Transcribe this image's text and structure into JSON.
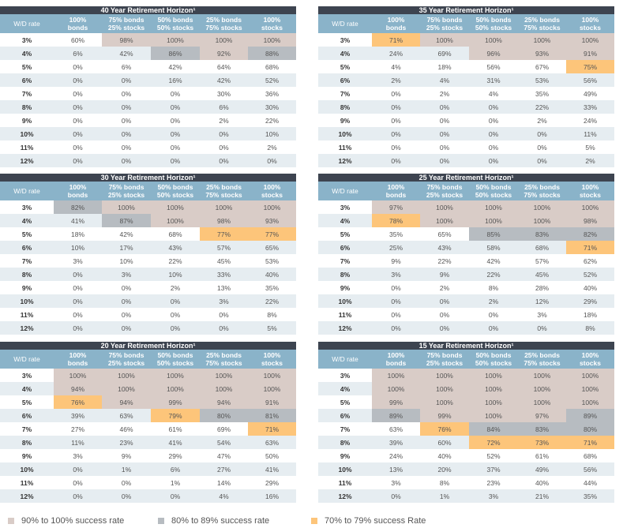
{
  "header": {
    "wd_label": "W/D rate",
    "cols": [
      [
        "100%",
        "bonds"
      ],
      [
        "75% bonds",
        "25% stocks"
      ],
      [
        "50% bonds",
        "50% stocks"
      ],
      [
        "25% bonds",
        "75% stocks"
      ],
      [
        "100%",
        "stocks"
      ]
    ]
  },
  "rates": [
    "3%",
    "4%",
    "5%",
    "6%",
    "7%",
    "8%",
    "9%",
    "10%",
    "11%",
    "12%"
  ],
  "tables": [
    {
      "title": "40 Year Retirement Horizon¹",
      "rows": [
        [
          {
            "v": "60%"
          },
          {
            "v": "98%",
            "c": "c90"
          },
          {
            "v": "100%",
            "c": "c90"
          },
          {
            "v": "100%",
            "c": "c90"
          },
          {
            "v": "100%",
            "c": "c90"
          }
        ],
        [
          {
            "v": "6%"
          },
          {
            "v": "42%"
          },
          {
            "v": "86%",
            "c": "c80"
          },
          {
            "v": "92%",
            "c": "c90"
          },
          {
            "v": "88%",
            "c": "c80"
          }
        ],
        [
          {
            "v": "0%"
          },
          {
            "v": "6%"
          },
          {
            "v": "42%"
          },
          {
            "v": "64%"
          },
          {
            "v": "68%"
          }
        ],
        [
          {
            "v": "0%"
          },
          {
            "v": "0%"
          },
          {
            "v": "16%"
          },
          {
            "v": "42%"
          },
          {
            "v": "52%"
          }
        ],
        [
          {
            "v": "0%"
          },
          {
            "v": "0%"
          },
          {
            "v": "0%"
          },
          {
            "v": "30%"
          },
          {
            "v": "36%"
          }
        ],
        [
          {
            "v": "0%"
          },
          {
            "v": "0%"
          },
          {
            "v": "0%"
          },
          {
            "v": "6%"
          },
          {
            "v": "30%"
          }
        ],
        [
          {
            "v": "0%"
          },
          {
            "v": "0%"
          },
          {
            "v": "0%"
          },
          {
            "v": "2%"
          },
          {
            "v": "22%"
          }
        ],
        [
          {
            "v": "0%"
          },
          {
            "v": "0%"
          },
          {
            "v": "0%"
          },
          {
            "v": "0%"
          },
          {
            "v": "10%"
          }
        ],
        [
          {
            "v": "0%"
          },
          {
            "v": "0%"
          },
          {
            "v": "0%"
          },
          {
            "v": "0%"
          },
          {
            "v": "2%"
          }
        ],
        [
          {
            "v": "0%"
          },
          {
            "v": "0%"
          },
          {
            "v": "0%"
          },
          {
            "v": "0%"
          },
          {
            "v": "0%"
          }
        ]
      ]
    },
    {
      "title": "35 Year Retirement Horizon¹",
      "rows": [
        [
          {
            "v": "71%",
            "c": "c70"
          },
          {
            "v": "100%",
            "c": "c90"
          },
          {
            "v": "100%",
            "c": "c90"
          },
          {
            "v": "100%",
            "c": "c90"
          },
          {
            "v": "100%",
            "c": "c90"
          }
        ],
        [
          {
            "v": "24%"
          },
          {
            "v": "69%"
          },
          {
            "v": "96%",
            "c": "c90"
          },
          {
            "v": "93%",
            "c": "c90"
          },
          {
            "v": "91%",
            "c": "c90"
          }
        ],
        [
          {
            "v": "4%"
          },
          {
            "v": "18%"
          },
          {
            "v": "56%"
          },
          {
            "v": "67%"
          },
          {
            "v": "75%",
            "c": "c70"
          }
        ],
        [
          {
            "v": "2%"
          },
          {
            "v": "4%"
          },
          {
            "v": "31%"
          },
          {
            "v": "53%"
          },
          {
            "v": "56%"
          }
        ],
        [
          {
            "v": "0%"
          },
          {
            "v": "2%"
          },
          {
            "v": "4%"
          },
          {
            "v": "35%"
          },
          {
            "v": "49%"
          }
        ],
        [
          {
            "v": "0%"
          },
          {
            "v": "0%"
          },
          {
            "v": "0%"
          },
          {
            "v": "22%"
          },
          {
            "v": "33%"
          }
        ],
        [
          {
            "v": "0%"
          },
          {
            "v": "0%"
          },
          {
            "v": "0%"
          },
          {
            "v": "2%"
          },
          {
            "v": "24%"
          }
        ],
        [
          {
            "v": "0%"
          },
          {
            "v": "0%"
          },
          {
            "v": "0%"
          },
          {
            "v": "0%"
          },
          {
            "v": "11%"
          }
        ],
        [
          {
            "v": "0%"
          },
          {
            "v": "0%"
          },
          {
            "v": "0%"
          },
          {
            "v": "0%"
          },
          {
            "v": "5%"
          }
        ],
        [
          {
            "v": "0%"
          },
          {
            "v": "0%"
          },
          {
            "v": "0%"
          },
          {
            "v": "0%"
          },
          {
            "v": "2%"
          }
        ]
      ]
    },
    {
      "title": "30 Year Retirement Horizon¹",
      "rows": [
        [
          {
            "v": "82%",
            "c": "c80"
          },
          {
            "v": "100%",
            "c": "c90"
          },
          {
            "v": "100%",
            "c": "c90"
          },
          {
            "v": "100%",
            "c": "c90"
          },
          {
            "v": "100%",
            "c": "c90"
          }
        ],
        [
          {
            "v": "41%"
          },
          {
            "v": "87%",
            "c": "c80"
          },
          {
            "v": "100%",
            "c": "c90"
          },
          {
            "v": "98%",
            "c": "c90"
          },
          {
            "v": "93%",
            "c": "c90"
          }
        ],
        [
          {
            "v": "18%"
          },
          {
            "v": "42%"
          },
          {
            "v": "68%"
          },
          {
            "v": "77%",
            "c": "c70"
          },
          {
            "v": "77%",
            "c": "c70"
          }
        ],
        [
          {
            "v": "10%"
          },
          {
            "v": "17%"
          },
          {
            "v": "43%"
          },
          {
            "v": "57%"
          },
          {
            "v": "65%"
          }
        ],
        [
          {
            "v": "3%"
          },
          {
            "v": "10%"
          },
          {
            "v": "22%"
          },
          {
            "v": "45%"
          },
          {
            "v": "53%"
          }
        ],
        [
          {
            "v": "0%"
          },
          {
            "v": "3%"
          },
          {
            "v": "10%"
          },
          {
            "v": "33%"
          },
          {
            "v": "40%"
          }
        ],
        [
          {
            "v": "0%"
          },
          {
            "v": "0%"
          },
          {
            "v": "2%"
          },
          {
            "v": "13%"
          },
          {
            "v": "35%"
          }
        ],
        [
          {
            "v": "0%"
          },
          {
            "v": "0%"
          },
          {
            "v": "0%"
          },
          {
            "v": "3%"
          },
          {
            "v": "22%"
          }
        ],
        [
          {
            "v": "0%"
          },
          {
            "v": "0%"
          },
          {
            "v": "0%"
          },
          {
            "v": "0%"
          },
          {
            "v": "8%"
          }
        ],
        [
          {
            "v": "0%"
          },
          {
            "v": "0%"
          },
          {
            "v": "0%"
          },
          {
            "v": "0%"
          },
          {
            "v": "5%"
          }
        ]
      ]
    },
    {
      "title": "25 Year Retirement Horizon¹",
      "rows": [
        [
          {
            "v": "97%",
            "c": "c90"
          },
          {
            "v": "100%",
            "c": "c90"
          },
          {
            "v": "100%",
            "c": "c90"
          },
          {
            "v": "100%",
            "c": "c90"
          },
          {
            "v": "100%",
            "c": "c90"
          }
        ],
        [
          {
            "v": "78%",
            "c": "c70"
          },
          {
            "v": "100%",
            "c": "c90"
          },
          {
            "v": "100%",
            "c": "c90"
          },
          {
            "v": "100%",
            "c": "c90"
          },
          {
            "v": "98%",
            "c": "c90"
          }
        ],
        [
          {
            "v": "35%"
          },
          {
            "v": "65%"
          },
          {
            "v": "85%",
            "c": "c80"
          },
          {
            "v": "83%",
            "c": "c80"
          },
          {
            "v": "82%",
            "c": "c80"
          }
        ],
        [
          {
            "v": "25%"
          },
          {
            "v": "43%"
          },
          {
            "v": "58%"
          },
          {
            "v": "68%"
          },
          {
            "v": "71%",
            "c": "c70"
          }
        ],
        [
          {
            "v": "9%"
          },
          {
            "v": "22%"
          },
          {
            "v": "42%"
          },
          {
            "v": "57%"
          },
          {
            "v": "62%"
          }
        ],
        [
          {
            "v": "3%"
          },
          {
            "v": "9%"
          },
          {
            "v": "22%"
          },
          {
            "v": "45%"
          },
          {
            "v": "52%"
          }
        ],
        [
          {
            "v": "0%"
          },
          {
            "v": "2%"
          },
          {
            "v": "8%"
          },
          {
            "v": "28%"
          },
          {
            "v": "40%"
          }
        ],
        [
          {
            "v": "0%"
          },
          {
            "v": "0%"
          },
          {
            "v": "2%"
          },
          {
            "v": "12%"
          },
          {
            "v": "29%"
          }
        ],
        [
          {
            "v": "0%"
          },
          {
            "v": "0%"
          },
          {
            "v": "0%"
          },
          {
            "v": "3%"
          },
          {
            "v": "18%"
          }
        ],
        [
          {
            "v": "0%"
          },
          {
            "v": "0%"
          },
          {
            "v": "0%"
          },
          {
            "v": "0%"
          },
          {
            "v": "8%"
          }
        ]
      ]
    },
    {
      "title": "20 Year Retirement Horizon¹",
      "rows": [
        [
          {
            "v": "100%",
            "c": "c90"
          },
          {
            "v": "100%",
            "c": "c90"
          },
          {
            "v": "100%",
            "c": "c90"
          },
          {
            "v": "100%",
            "c": "c90"
          },
          {
            "v": "100%",
            "c": "c90"
          }
        ],
        [
          {
            "v": "94%",
            "c": "c90"
          },
          {
            "v": "100%",
            "c": "c90"
          },
          {
            "v": "100%",
            "c": "c90"
          },
          {
            "v": "100%",
            "c": "c90"
          },
          {
            "v": "100%",
            "c": "c90"
          }
        ],
        [
          {
            "v": "76%",
            "c": "c70"
          },
          {
            "v": "94%",
            "c": "c90"
          },
          {
            "v": "99%",
            "c": "c90"
          },
          {
            "v": "94%",
            "c": "c90"
          },
          {
            "v": "91%",
            "c": "c90"
          }
        ],
        [
          {
            "v": "39%"
          },
          {
            "v": "63%"
          },
          {
            "v": "79%",
            "c": "c70"
          },
          {
            "v": "80%",
            "c": "c80"
          },
          {
            "v": "81%",
            "c": "c80"
          }
        ],
        [
          {
            "v": "27%"
          },
          {
            "v": "46%"
          },
          {
            "v": "61%"
          },
          {
            "v": "69%"
          },
          {
            "v": "71%",
            "c": "c70"
          }
        ],
        [
          {
            "v": "11%"
          },
          {
            "v": "23%"
          },
          {
            "v": "41%"
          },
          {
            "v": "54%"
          },
          {
            "v": "63%"
          }
        ],
        [
          {
            "v": "3%"
          },
          {
            "v": "9%"
          },
          {
            "v": "29%"
          },
          {
            "v": "47%"
          },
          {
            "v": "50%"
          }
        ],
        [
          {
            "v": "0%"
          },
          {
            "v": "1%"
          },
          {
            "v": "6%"
          },
          {
            "v": "27%"
          },
          {
            "v": "41%"
          }
        ],
        [
          {
            "v": "0%"
          },
          {
            "v": "0%"
          },
          {
            "v": "1%"
          },
          {
            "v": "14%"
          },
          {
            "v": "29%"
          }
        ],
        [
          {
            "v": "0%"
          },
          {
            "v": "0%"
          },
          {
            "v": "0%"
          },
          {
            "v": "4%"
          },
          {
            "v": "16%"
          }
        ]
      ]
    },
    {
      "title": "15 Year Retirement Horizon¹",
      "rows": [
        [
          {
            "v": "100%",
            "c": "c90"
          },
          {
            "v": "100%",
            "c": "c90"
          },
          {
            "v": "100%",
            "c": "c90"
          },
          {
            "v": "100%",
            "c": "c90"
          },
          {
            "v": "100%",
            "c": "c90"
          }
        ],
        [
          {
            "v": "100%",
            "c": "c90"
          },
          {
            "v": "100%",
            "c": "c90"
          },
          {
            "v": "100%",
            "c": "c90"
          },
          {
            "v": "100%",
            "c": "c90"
          },
          {
            "v": "100%",
            "c": "c90"
          }
        ],
        [
          {
            "v": "99%",
            "c": "c90"
          },
          {
            "v": "100%",
            "c": "c90"
          },
          {
            "v": "100%",
            "c": "c90"
          },
          {
            "v": "100%",
            "c": "c90"
          },
          {
            "v": "100%",
            "c": "c90"
          }
        ],
        [
          {
            "v": "89%",
            "c": "c80"
          },
          {
            "v": "99%",
            "c": "c90"
          },
          {
            "v": "100%",
            "c": "c90"
          },
          {
            "v": "97%",
            "c": "c90"
          },
          {
            "v": "89%",
            "c": "c80"
          }
        ],
        [
          {
            "v": "63%"
          },
          {
            "v": "76%",
            "c": "c70"
          },
          {
            "v": "84%",
            "c": "c80"
          },
          {
            "v": "83%",
            "c": "c80"
          },
          {
            "v": "80%",
            "c": "c80"
          }
        ],
        [
          {
            "v": "39%"
          },
          {
            "v": "60%"
          },
          {
            "v": "72%",
            "c": "c70"
          },
          {
            "v": "73%",
            "c": "c70"
          },
          {
            "v": "71%",
            "c": "c70"
          }
        ],
        [
          {
            "v": "24%"
          },
          {
            "v": "40%"
          },
          {
            "v": "52%"
          },
          {
            "v": "61%"
          },
          {
            "v": "68%"
          }
        ],
        [
          {
            "v": "13%"
          },
          {
            "v": "20%"
          },
          {
            "v": "37%"
          },
          {
            "v": "49%"
          },
          {
            "v": "56%"
          }
        ],
        [
          {
            "v": "3%"
          },
          {
            "v": "8%"
          },
          {
            "v": "23%"
          },
          {
            "v": "40%"
          },
          {
            "v": "44%"
          }
        ],
        [
          {
            "v": "0%"
          },
          {
            "v": "1%"
          },
          {
            "v": "3%"
          },
          {
            "v": "21%"
          },
          {
            "v": "35%"
          }
        ]
      ]
    }
  ],
  "legend": [
    {
      "label": "90% to 100% success rate",
      "color": "#d9ccc7"
    },
    {
      "label": "80% to 89% success rate",
      "color": "#b7bcc1"
    },
    {
      "label": "70% to 79% success Rate",
      "color": "#fdc57a"
    }
  ]
}
